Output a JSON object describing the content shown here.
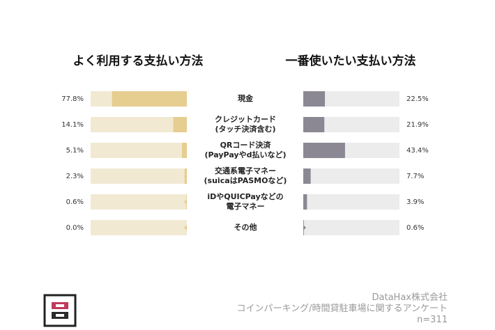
{
  "chart_data": {
    "type": "bar",
    "categories": [
      "現金",
      "クレジットカード\n(タッチ決済含む)",
      "QRコード決済\n(PayPayやd払いなど)",
      "交通系電子マネー\n(suicaはPASMOなど)",
      "iDやQUICPayなどの\n電子マネー",
      "その他"
    ],
    "xlim": [
      0,
      100
    ],
    "series": [
      {
        "name": "よく利用する支払い方法",
        "color": "#e6cd90",
        "track": "#f2e9d3",
        "values": [
          77.8,
          14.1,
          5.1,
          2.3,
          0.6,
          0.0
        ],
        "value_labels": [
          "77.8%",
          "14.1%",
          "5.1%",
          "2.3%",
          "0.6%",
          "0.0%"
        ]
      },
      {
        "name": "一番使いたい支払い方法",
        "color": "#8b8894",
        "track": "#ececed",
        "values": [
          22.5,
          21.9,
          43.4,
          7.7,
          3.9,
          0.6
        ],
        "value_labels": [
          "22.5%",
          "21.9%",
          "43.4%",
          "7.7%",
          "3.9%",
          "0.6%"
        ]
      }
    ]
  },
  "footer": {
    "company": "DataHax株式会社",
    "survey": "コインパーキング/時間貸駐車場に関するアンケート",
    "sample": "n=311"
  }
}
